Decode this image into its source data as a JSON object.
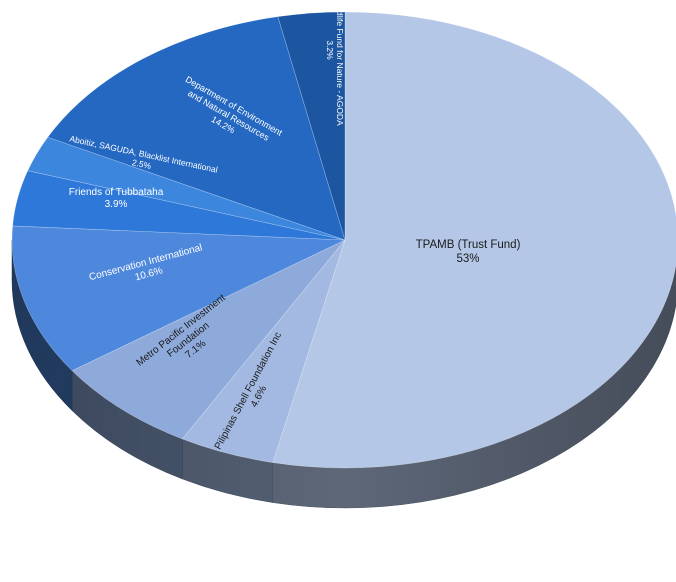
{
  "chart_data": {
    "type": "pie",
    "style": "3d-tilted",
    "slices": [
      {
        "label": "TPAMB (Trust Fund)",
        "value_label": "53%",
        "value": 53,
        "color": "#b4c7e7"
      },
      {
        "label": "Pilipinas Shell Foundation Inc",
        "value_label": "4.6%",
        "value": 4.6,
        "color": "#a3b9e2"
      },
      {
        "label": "Metro Pacific Investment Foundation",
        "value_label": "7.1%",
        "value": 7.1,
        "color": "#8eaadb"
      },
      {
        "label": "Conservation International",
        "value_label": "10.6%",
        "value": 10.6,
        "color": "#4d88dc"
      },
      {
        "label": "Friends of Tubbataha",
        "value_label": "3.9%",
        "value": 3.9,
        "color": "#2e78d9"
      },
      {
        "label": "Aboitiz, SAGUDA, Blacklist International",
        "value_label": "2.5%",
        "value": 2.5,
        "color": "#3d86de"
      },
      {
        "label": "Department of Environment and Natural Resources",
        "value_label": "14.2%",
        "value": 14.2,
        "color": "#2468c2"
      },
      {
        "label": "World Wildlife Fund for Nature - AGODA",
        "value_label": "3.2%",
        "value": 3.2,
        "color": "#1c55a0"
      }
    ]
  }
}
